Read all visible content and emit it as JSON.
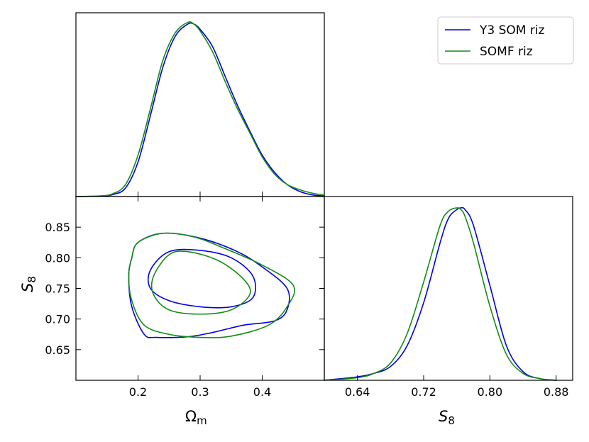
{
  "chart_data": {
    "type": "line",
    "subtype": "corner-plot",
    "legend_position": "top-right",
    "series": [
      {
        "name": "Y3 SOM riz",
        "color": "#0000e0"
      },
      {
        "name": "SOMF riz",
        "color": "#148c14"
      }
    ],
    "panels": {
      "omega_marginal": {
        "type": "line",
        "xlim": [
          0.1,
          0.5
        ],
        "x": [
          0.1,
          0.14,
          0.16,
          0.18,
          0.2,
          0.22,
          0.24,
          0.26,
          0.28,
          0.29,
          0.3,
          0.32,
          0.34,
          0.36,
          0.38,
          0.4,
          0.42,
          0.44,
          0.46,
          0.48,
          0.5
        ],
        "series": [
          {
            "name": "Y3 SOM riz",
            "values": [
              0,
              0.003,
              0.012,
              0.05,
              0.2,
              0.47,
              0.75,
              0.93,
              1.0,
              1.0,
              0.97,
              0.87,
              0.7,
              0.53,
              0.38,
              0.24,
              0.14,
              0.07,
              0.03,
              0.01,
              0.003
            ]
          },
          {
            "name": "SOMF riz",
            "values": [
              0,
              0.004,
              0.017,
              0.07,
              0.24,
              0.51,
              0.79,
              0.95,
              1.01,
              1.0,
              0.96,
              0.84,
              0.67,
              0.51,
              0.37,
              0.23,
              0.13,
              0.07,
              0.04,
              0.02,
              0.008
            ]
          }
        ]
      },
      "s8_marginal": {
        "type": "line",
        "xlim": [
          0.6,
          0.9
        ],
        "xticks": [
          "0.64",
          "0.72",
          "0.80",
          "0.88"
        ],
        "xlabel": "S",
        "xlabel_sub": "8",
        "x": [
          0.6,
          0.64,
          0.66,
          0.68,
          0.7,
          0.72,
          0.74,
          0.75,
          0.76,
          0.765,
          0.77,
          0.78,
          0.8,
          0.82,
          0.84,
          0.86,
          0.88
        ],
        "series": [
          {
            "name": "Y3 SOM riz",
            "values": [
              0,
              0.02,
              0.04,
              0.08,
              0.2,
              0.45,
              0.8,
              0.94,
              0.99,
              1.0,
              0.99,
              0.9,
              0.55,
              0.2,
              0.05,
              0.01,
              0
            ]
          },
          {
            "name": "SOMF riz",
            "values": [
              0,
              0.015,
              0.04,
              0.1,
              0.27,
              0.57,
              0.9,
              0.98,
              1.0,
              0.99,
              0.95,
              0.8,
              0.43,
              0.15,
              0.04,
              0.01,
              0
            ]
          }
        ]
      },
      "joint": {
        "type": "line",
        "xlim": [
          0.1,
          0.5
        ],
        "ylim": [
          0.6,
          0.9
        ],
        "xticks": [
          "0.2",
          "0.3",
          "0.4"
        ],
        "yticks": [
          "0.65",
          "0.70",
          "0.75",
          "0.80",
          "0.85"
        ],
        "xlabel": "Ω",
        "xlabel_sub": "m",
        "ylabel": "S",
        "ylabel_sub": "8",
        "contours": [
          {
            "series": "Y3 SOM riz",
            "level": "outer",
            "points": [
              [
                0.19,
                0.8
              ],
              [
                0.2,
                0.825
              ],
              [
                0.24,
                0.84
              ],
              [
                0.3,
                0.832
              ],
              [
                0.36,
                0.81
              ],
              [
                0.4,
                0.785
              ],
              [
                0.44,
                0.75
              ],
              [
                0.44,
                0.715
              ],
              [
                0.42,
                0.697
              ],
              [
                0.37,
                0.69
              ],
              [
                0.32,
                0.678
              ],
              [
                0.28,
                0.671
              ],
              [
                0.23,
                0.67
              ],
              [
                0.21,
                0.675
              ],
              [
                0.19,
                0.72
              ],
              [
                0.185,
                0.77
              ]
            ]
          },
          {
            "series": "Y3 SOM riz",
            "level": "inner",
            "points": [
              [
                0.22,
                0.78
              ],
              [
                0.25,
                0.81
              ],
              [
                0.3,
                0.812
              ],
              [
                0.35,
                0.8
              ],
              [
                0.385,
                0.77
              ],
              [
                0.385,
                0.735
              ],
              [
                0.35,
                0.72
              ],
              [
                0.3,
                0.72
              ],
              [
                0.25,
                0.73
              ],
              [
                0.22,
                0.75
              ]
            ]
          },
          {
            "series": "SOMF riz",
            "level": "outer",
            "points": [
              [
                0.19,
                0.8
              ],
              [
                0.2,
                0.825
              ],
              [
                0.24,
                0.84
              ],
              [
                0.29,
                0.834
              ],
              [
                0.34,
                0.815
              ],
              [
                0.4,
                0.788
              ],
              [
                0.45,
                0.755
              ],
              [
                0.44,
                0.72
              ],
              [
                0.41,
                0.69
              ],
              [
                0.35,
                0.672
              ],
              [
                0.3,
                0.67
              ],
              [
                0.25,
                0.675
              ],
              [
                0.21,
                0.69
              ],
              [
                0.19,
                0.73
              ],
              [
                0.185,
                0.77
              ]
            ]
          },
          {
            "series": "SOMF riz",
            "level": "inner",
            "points": [
              [
                0.225,
                0.77
              ],
              [
                0.25,
                0.805
              ],
              [
                0.28,
                0.81
              ],
              [
                0.33,
                0.795
              ],
              [
                0.37,
                0.765
              ],
              [
                0.38,
                0.74
              ],
              [
                0.35,
                0.715
              ],
              [
                0.3,
                0.708
              ],
              [
                0.25,
                0.715
              ],
              [
                0.225,
                0.74
              ]
            ]
          }
        ]
      }
    }
  }
}
